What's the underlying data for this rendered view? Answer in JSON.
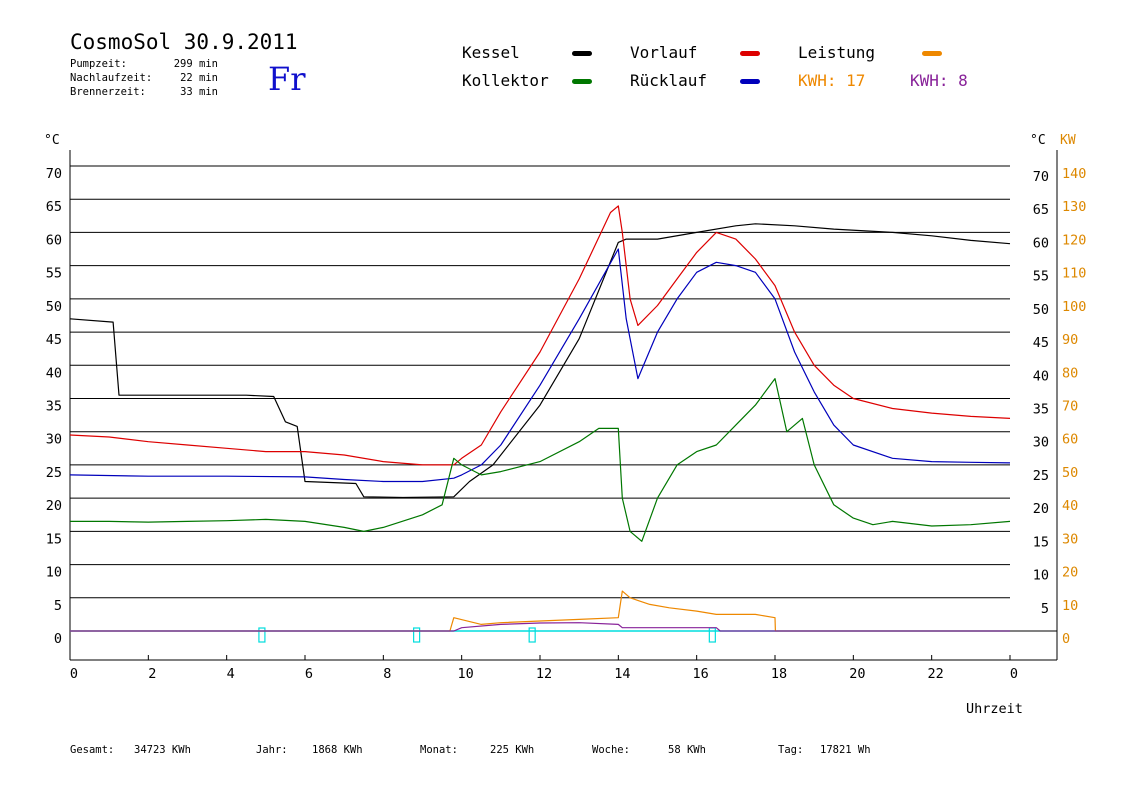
{
  "header": {
    "title": "CosmoSol 30.9.2011",
    "weekday": "Fr",
    "meta": [
      {
        "label": "Pumpzeit:",
        "value": "299 min"
      },
      {
        "label": "Nachlaufzeit:",
        "value": "22 min"
      },
      {
        "label": "Brennerzeit:",
        "value": "33 min"
      }
    ]
  },
  "legend": {
    "kessel": "Kessel",
    "vorlauf": "Vorlauf",
    "leistung": "Leistung",
    "kollektor": "Kollektor",
    "ruecklauf": "Rücklauf",
    "kwh1": "KWH: 17",
    "kwh2": "KWH: 8"
  },
  "colors": {
    "kessel": "#000000",
    "vorlauf": "#dd0000",
    "leistung": "#ee8800",
    "kollektor": "#007700",
    "ruecklauf": "#0000bb",
    "kwh2": "#882299",
    "cyan": "#00dddd"
  },
  "axes": {
    "left_unit": "°C",
    "right_unit_c": "°C",
    "right_unit_kw": "KW",
    "xlabel": "Uhrzeit"
  },
  "footer": {
    "gesamt_label": "Gesamt:",
    "gesamt_value": "34723 KWh",
    "jahr_label": "Jahr:",
    "jahr_value": "1868 KWh",
    "monat_label": "Monat:",
    "monat_value": "225 KWh",
    "woche_label": "Woche:",
    "woche_value": "58 KWh",
    "tag_label": "Tag:",
    "tag_value": "17821 Wh"
  },
  "chart_data": {
    "type": "line",
    "xlabel": "Uhrzeit",
    "ylabel": "°C",
    "y2label": "KW",
    "xlim": [
      0,
      24
    ],
    "ylim": [
      0,
      70
    ],
    "y2lim": [
      0,
      140
    ],
    "x_ticks": [
      "0",
      "2",
      "4",
      "6",
      "8",
      "10",
      "12",
      "14",
      "16",
      "18",
      "20",
      "22",
      "0"
    ],
    "y_ticks": [
      0,
      5,
      10,
      15,
      20,
      25,
      30,
      35,
      40,
      45,
      50,
      55,
      60,
      65,
      70
    ],
    "y2_ticks": [
      0,
      10,
      20,
      30,
      40,
      50,
      60,
      70,
      80,
      90,
      100,
      110,
      120,
      130,
      140
    ],
    "grid": true,
    "series": [
      {
        "name": "Kessel",
        "color": "#000000",
        "x": [
          0,
          1.1,
          1.25,
          2.5,
          4.5,
          5.2,
          5.5,
          5.8,
          6.0,
          7.3,
          7.5,
          8.5,
          9.8,
          10.2,
          10.8,
          12,
          13,
          14.0,
          14.2,
          15,
          16,
          17,
          17.5,
          18.5,
          19.5,
          21,
          22,
          23,
          24
        ],
        "y": [
          47,
          46.5,
          35.5,
          35.5,
          35.5,
          35.3,
          31.5,
          30.8,
          22.5,
          22.2,
          20.2,
          20.1,
          20.2,
          22.5,
          25,
          34,
          44,
          58.5,
          59,
          59,
          60,
          61,
          61.3,
          61,
          60.5,
          60,
          59.5,
          58.8,
          58.3
        ]
      },
      {
        "name": "Vorlauf",
        "color": "#dd0000",
        "x": [
          0,
          1,
          2,
          3,
          4,
          5,
          6,
          7,
          8,
          9,
          9.8,
          10,
          10.5,
          11,
          12,
          13,
          13.8,
          14.0,
          14.1,
          14.3,
          14.5,
          15,
          15.5,
          16,
          16.5,
          17,
          17.5,
          18,
          18.5,
          19,
          19.5,
          20,
          21,
          22,
          23,
          24
        ],
        "y": [
          29.5,
          29.2,
          28.5,
          28,
          27.5,
          27,
          27,
          26.5,
          25.5,
          25,
          25,
          26,
          28,
          33,
          42,
          53,
          63,
          64,
          60,
          50,
          46,
          49,
          53,
          57,
          60,
          59,
          56,
          52,
          45,
          40,
          37,
          35,
          33.5,
          32.8,
          32.3,
          32
        ]
      },
      {
        "name": "Rücklauf",
        "color": "#0000bb",
        "x": [
          0,
          2,
          4,
          6,
          7,
          8,
          9,
          9.8,
          10,
          10.5,
          11,
          12,
          13,
          14.0,
          14.2,
          14.5,
          15,
          15.5,
          16,
          16.5,
          17,
          17.5,
          18,
          18.5,
          19,
          19.5,
          20,
          21,
          22,
          23,
          24
        ],
        "y": [
          23.5,
          23.3,
          23.3,
          23.2,
          22.8,
          22.5,
          22.5,
          23,
          23.5,
          25,
          28,
          37,
          47,
          57.5,
          47,
          38,
          45,
          50,
          54,
          55.5,
          55,
          54,
          50,
          42,
          36,
          31,
          28,
          26,
          25.5,
          25.4,
          25.3
        ]
      },
      {
        "name": "Kollektor",
        "color": "#007700",
        "x": [
          0,
          1,
          2,
          3,
          4,
          5,
          6,
          7,
          7.5,
          8,
          9,
          9.5,
          9.8,
          10,
          10.5,
          11,
          12,
          13,
          13.5,
          14.0,
          14.1,
          14.3,
          14.6,
          15,
          15.5,
          16,
          16.5,
          17,
          17.5,
          18,
          18.3,
          18.7,
          19,
          19.5,
          20,
          20.5,
          21,
          22,
          23,
          24
        ],
        "y": [
          16.5,
          16.5,
          16.4,
          16.5,
          16.6,
          16.8,
          16.5,
          15.6,
          15,
          15.6,
          17.5,
          19,
          26,
          25,
          23.5,
          24,
          25.5,
          28.5,
          30.5,
          30.5,
          20,
          15,
          13.5,
          20,
          25,
          27,
          28,
          31,
          34,
          38,
          30,
          32,
          25,
          19,
          17,
          16,
          16.5,
          15.8,
          16,
          16.5
        ]
      },
      {
        "name": "Leistung",
        "color": "#ee8800",
        "axis": "right",
        "x": [
          0,
          9.7,
          9.8,
          10.5,
          11,
          12,
          13,
          14.0,
          14.1,
          14.3,
          14.8,
          15.3,
          16,
          16.5,
          17,
          17.5,
          18,
          18.01,
          24
        ],
        "y": [
          0,
          0,
          4,
          2,
          2.5,
          3,
          3.5,
          4,
          12,
          10,
          8,
          7,
          6,
          5,
          5,
          5,
          4,
          0,
          0
        ]
      },
      {
        "name": "KWH",
        "color": "#882299",
        "axis": "right",
        "x": [
          0,
          9.8,
          10.0,
          11,
          12,
          13,
          14.0,
          14.1,
          15,
          16.5,
          16.6,
          24
        ],
        "y": [
          0,
          0,
          1,
          2,
          2.4,
          2.5,
          2,
          1,
          1,
          1,
          0,
          0
        ]
      }
    ],
    "markers": [
      4.9,
      8.85,
      11.8,
      16.4
    ]
  }
}
